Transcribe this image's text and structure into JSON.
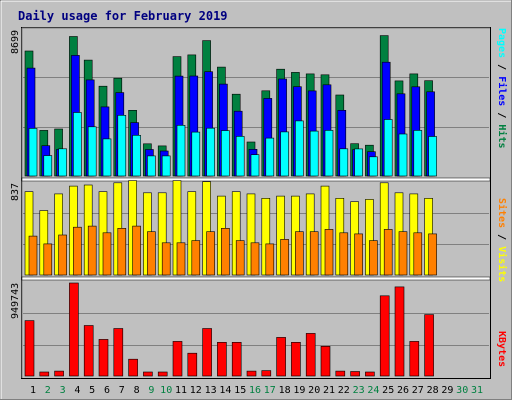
{
  "chart_data": [
    {
      "type": "bar",
      "panel": "hits-files-pages",
      "title": "Daily usage for February 2019",
      "ymax_label": "8699",
      "y_max": 8699,
      "x": [
        "1",
        "2",
        "3",
        "4",
        "5",
        "6",
        "7",
        "8",
        "9",
        "10",
        "11",
        "12",
        "13",
        "14",
        "15",
        "16",
        "17",
        "18",
        "19",
        "20",
        "21",
        "22",
        "23",
        "24",
        "25",
        "26",
        "27",
        "28",
        "29",
        "30",
        "31"
      ],
      "x_weekend": [
        false,
        true,
        true,
        false,
        false,
        false,
        false,
        false,
        true,
        true,
        false,
        false,
        false,
        false,
        false,
        true,
        true,
        false,
        false,
        false,
        false,
        false,
        true,
        true,
        false,
        false,
        false,
        false,
        false,
        true,
        true
      ],
      "series": [
        {
          "name": "Hits",
          "color": "#008040",
          "values": [
            7350,
            2680,
            2760,
            8200,
            6810,
            5280,
            5750,
            3860,
            1890,
            1770,
            7020,
            7120,
            7960,
            6400,
            4810,
            2000,
            5010,
            6280,
            6090,
            6000,
            5950,
            4760,
            1900,
            1810,
            8250,
            5590,
            6000,
            5600,
            0,
            0,
            0
          ]
        },
        {
          "name": "Files",
          "color": "#0000ff",
          "values": [
            6340,
            1780,
            1570,
            7090,
            5650,
            4060,
            4900,
            3140,
            1560,
            1470,
            5870,
            5880,
            6130,
            5400,
            3810,
            1570,
            4560,
            5700,
            5250,
            5000,
            5360,
            3860,
            1550,
            1430,
            6690,
            4830,
            5240,
            4950,
            0,
            0,
            0
          ]
        },
        {
          "name": "Pages",
          "color": "#00ffff",
          "values": [
            2800,
            1200,
            1600,
            3730,
            2890,
            2180,
            3570,
            2390,
            1180,
            1180,
            2980,
            2580,
            2810,
            2670,
            2330,
            1250,
            2230,
            2590,
            3240,
            2640,
            2680,
            1600,
            1590,
            1130,
            3320,
            2470,
            2680,
            2320,
            0,
            0,
            0
          ]
        }
      ],
      "legend_labels": [
        "Pages",
        "Files",
        "Hits"
      ],
      "legend_separators": [
        "/",
        "/"
      ]
    },
    {
      "type": "bar",
      "panel": "visits-sites",
      "ymax_label": "837",
      "y_max": 837,
      "x": [
        "1",
        "2",
        "3",
        "4",
        "5",
        "6",
        "7",
        "8",
        "9",
        "10",
        "11",
        "12",
        "13",
        "14",
        "15",
        "16",
        "17",
        "18",
        "19",
        "20",
        "21",
        "22",
        "23",
        "24",
        "25",
        "26",
        "27",
        "28",
        "29",
        "30",
        "31"
      ],
      "series": [
        {
          "name": "Visits",
          "color": "#ffff00",
          "values": [
            750,
            580,
            730,
            800,
            810,
            750,
            830,
            850,
            740,
            740,
            850,
            750,
            840,
            710,
            750,
            730,
            690,
            710,
            710,
            730,
            800,
            690,
            660,
            680,
            830,
            740,
            730,
            690,
            0,
            0,
            0
          ]
        },
        {
          "name": "Sites",
          "color": "#ff8000",
          "values": [
            350,
            280,
            360,
            430,
            440,
            380,
            420,
            440,
            390,
            290,
            290,
            310,
            390,
            420,
            310,
            290,
            280,
            320,
            390,
            390,
            410,
            380,
            370,
            310,
            410,
            390,
            380,
            370,
            0,
            0,
            0
          ]
        }
      ],
      "legend_labels": [
        "Sites",
        "Visits"
      ],
      "legend_separators": [
        "/"
      ]
    },
    {
      "type": "bar",
      "panel": "kbytes",
      "ymax_label": "949743",
      "y_max": 949743,
      "x": [
        "1",
        "2",
        "3",
        "4",
        "5",
        "6",
        "7",
        "8",
        "9",
        "10",
        "11",
        "12",
        "13",
        "14",
        "15",
        "16",
        "17",
        "18",
        "19",
        "20",
        "21",
        "22",
        "23",
        "24",
        "25",
        "26",
        "27",
        "28",
        "29",
        "30",
        "31"
      ],
      "series": [
        {
          "name": "KBytes",
          "color": "#ff0000",
          "values": [
            560000,
            40000,
            50000,
            940000,
            510000,
            370000,
            480000,
            170000,
            40000,
            40000,
            350000,
            230000,
            480000,
            340000,
            340000,
            50000,
            55000,
            390000,
            340000,
            430000,
            300000,
            50000,
            45000,
            40000,
            810000,
            900000,
            350000,
            620000,
            0,
            0,
            0
          ]
        }
      ],
      "legend_labels": [
        "KBytes"
      ],
      "legend_separators": []
    }
  ],
  "colors": {
    "background": "#c0c0c0",
    "plot_background": "#c0c0c0",
    "title": "#000080",
    "weekday_label": "#000000",
    "weekend_label": "#008040",
    "gridline": "#808080",
    "bar_outline": "#000000",
    "separator": "#000000"
  }
}
